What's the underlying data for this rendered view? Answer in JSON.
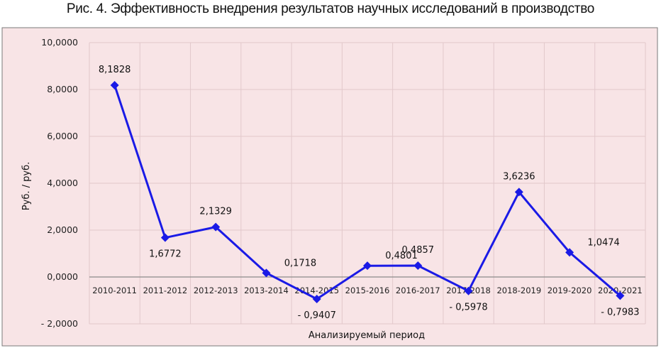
{
  "chart_data": {
    "type": "line",
    "title": "Рис. 4. Эффективность внедрения результатов научных исследований в производство",
    "xlabel": "Анализируемый период",
    "ylabel": "Руб. / руб.",
    "categories": [
      "2010-2011",
      "2011-2012",
      "2012-2013",
      "2013-2014",
      "2014-2015",
      "2015-2016",
      "2016-2017",
      "2017-2018",
      "2018-2019",
      "2019-2020",
      "2020-2021"
    ],
    "series": [
      {
        "values": [
          8.1828,
          1.6772,
          2.1329,
          0.1718,
          -0.9407,
          0.4801,
          0.4857,
          -0.5978,
          3.6236,
          1.0474,
          -0.7983
        ]
      }
    ],
    "data_labels": [
      "8,1828",
      "1,6772",
      "2,1329",
      "0,1718",
      "- 0,9407",
      "0,4801",
      "0,4857",
      "- 0,5978",
      "3,6236",
      "1,0474",
      "- 0,7983"
    ],
    "ylim": [
      -2,
      10
    ],
    "y_ticks": [
      10,
      8,
      6,
      4,
      2,
      0,
      -2
    ],
    "y_tick_labels": [
      "10,0000",
      "8,0000",
      "6,0000",
      "4,0000",
      "2,0000",
      "0,0000",
      "- 2,0000"
    ],
    "grid": true,
    "colors": {
      "line": "#1a1ae6",
      "marker": "#1a1ae6",
      "plot_background": "#f8e4e6",
      "chart_border": "#7a7a7a",
      "gridline": "#e2c8cb",
      "zero_axis": "#8a8a8a"
    }
  }
}
